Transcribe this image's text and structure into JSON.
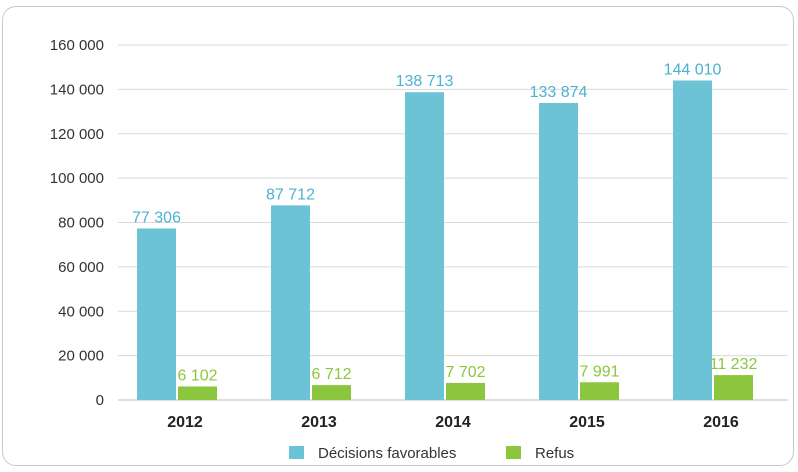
{
  "chart_data": {
    "type": "bar",
    "categories": [
      "2012",
      "2013",
      "2014",
      "2015",
      "2016"
    ],
    "series": [
      {
        "name": "Décisions favorables",
        "values": [
          77306,
          87712,
          138713,
          133874,
          144010
        ],
        "labels": [
          "77 306",
          "87 712",
          "138 713",
          "133 874",
          "144 010"
        ],
        "color": "#6cc3d6",
        "label_color": "#4bb3d1"
      },
      {
        "name": "Refus",
        "values": [
          6102,
          6712,
          7702,
          7991,
          11232
        ],
        "labels": [
          "6 102",
          "6 712",
          "7 702",
          "7 991",
          "11 232"
        ],
        "color": "#8cc63f",
        "label_color": "#8cc63f"
      }
    ],
    "y_ticks": [
      {
        "value": 0,
        "label": "0"
      },
      {
        "value": 20000,
        "label": "20 000"
      },
      {
        "value": 40000,
        "label": "40 000"
      },
      {
        "value": 60000,
        "label": "60 000"
      },
      {
        "value": 80000,
        "label": "80 000"
      },
      {
        "value": 100000,
        "label": "100 000"
      },
      {
        "value": 120000,
        "label": "120 000"
      },
      {
        "value": 140000,
        "label": "140 000"
      },
      {
        "value": 160000,
        "label": "160 000"
      }
    ],
    "ylim": [
      0,
      160000
    ],
    "grid": true,
    "legend_position": "bottom-center",
    "title": "",
    "xlabel": "",
    "ylabel": ""
  }
}
